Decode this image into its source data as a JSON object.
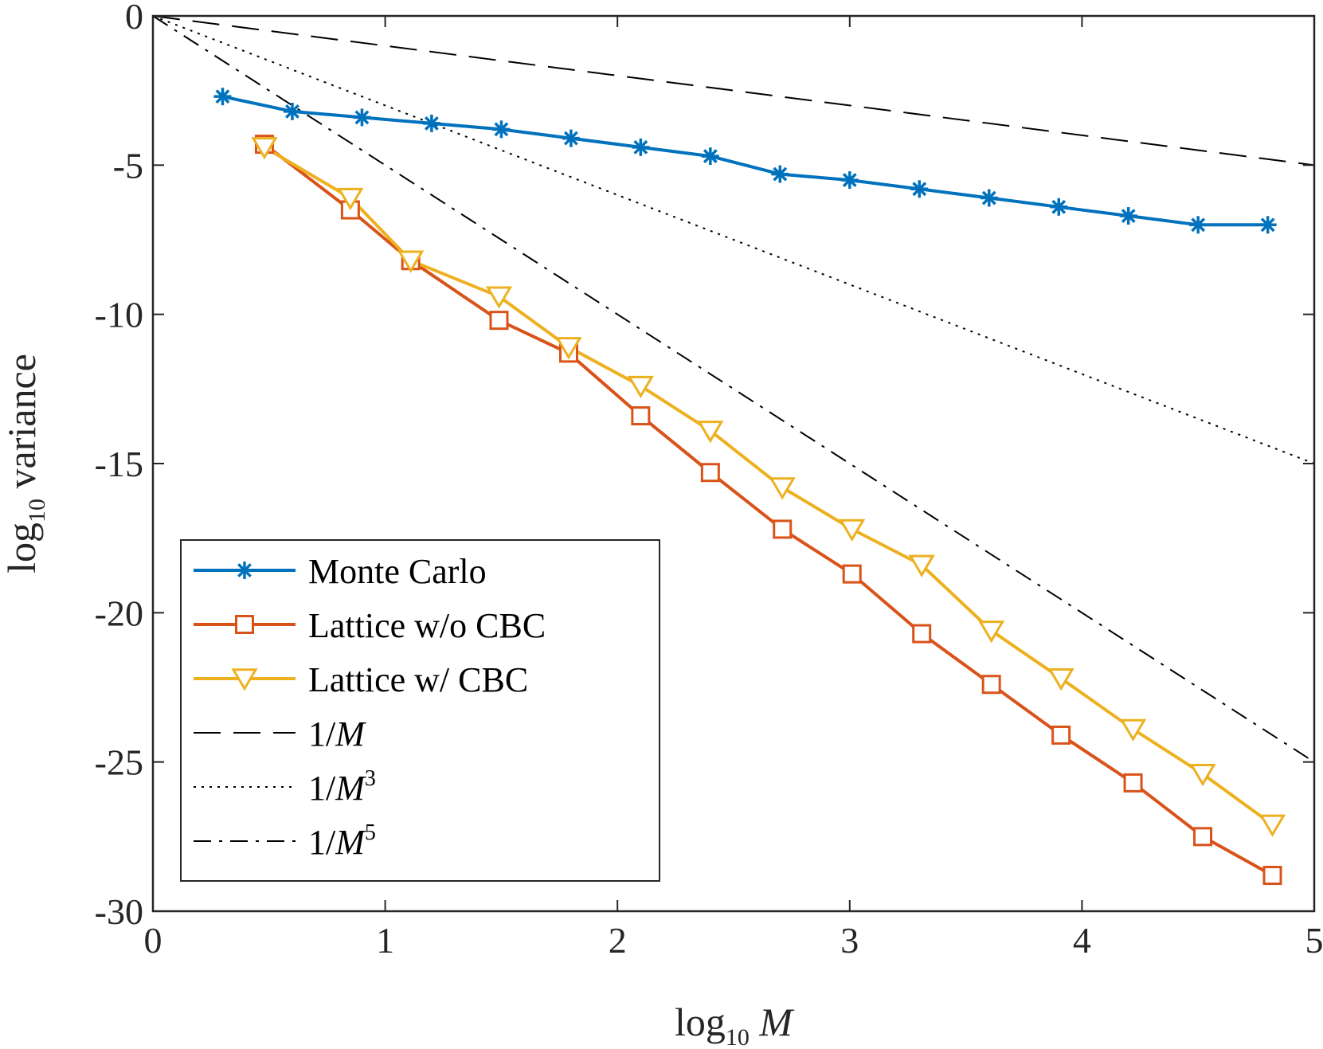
{
  "chart_data": {
    "type": "line",
    "xlabel": {
      "prefix": "log",
      "sub": "10",
      "var": "M"
    },
    "ylabel": {
      "prefix": "log",
      "sub": "10",
      "rest": "variance"
    },
    "xlim": [
      0,
      5
    ],
    "ylim": [
      -30,
      0
    ],
    "xticks": [
      0,
      1,
      2,
      3,
      4,
      5
    ],
    "yticks": [
      0,
      -5,
      -10,
      -15,
      -20,
      -25,
      -30
    ],
    "xtick_labels": [
      "0",
      "1",
      "2",
      "3",
      "4",
      "5"
    ],
    "ytick_labels": [
      "0",
      "-5",
      "-10",
      "-15",
      "-20",
      "-25",
      "-30"
    ],
    "grid": false,
    "legend_position": "bottom-left",
    "series": [
      {
        "name": "Monte Carlo",
        "color": "#0072BD",
        "marker": "asterisk",
        "x": [
          0.3,
          0.6,
          0.9,
          1.2,
          1.5,
          1.8,
          2.1,
          2.4,
          2.7,
          3.0,
          3.3,
          3.6,
          3.9,
          4.2,
          4.5,
          4.8
        ],
        "y": [
          -2.7,
          -3.2,
          -3.4,
          -3.6,
          -3.8,
          -4.1,
          -4.4,
          -4.7,
          -5.3,
          -5.5,
          -5.8,
          -6.1,
          -6.4,
          -6.7,
          -7.0,
          -7.0
        ]
      },
      {
        "name": "Lattice w/o CBC",
        "color": "#D95319",
        "marker": "square",
        "x": [
          0.48,
          0.85,
          1.11,
          1.49,
          1.79,
          2.1,
          2.4,
          2.71,
          3.01,
          3.31,
          3.61,
          3.91,
          4.22,
          4.52,
          4.82
        ],
        "y": [
          -4.3,
          -6.5,
          -8.2,
          -10.2,
          -11.3,
          -13.4,
          -15.3,
          -17.2,
          -18.7,
          -20.7,
          -22.4,
          -24.1,
          -25.7,
          -27.5,
          -28.8
        ]
      },
      {
        "name": "Lattice w/ CBC",
        "color": "#EDB120",
        "marker": "triangle-down",
        "x": [
          0.48,
          0.85,
          1.11,
          1.49,
          1.79,
          2.1,
          2.4,
          2.71,
          3.01,
          3.31,
          3.61,
          3.91,
          4.22,
          4.52,
          4.82
        ],
        "y": [
          -4.4,
          -6.1,
          -8.2,
          -9.4,
          -11.1,
          -12.4,
          -13.9,
          -15.8,
          -17.2,
          -18.4,
          -20.6,
          -22.2,
          -23.9,
          -25.4,
          -27.1
        ]
      }
    ],
    "reference_lines": [
      {
        "name": "1/M",
        "base": "1/",
        "var": "M",
        "power": "",
        "slope": -1,
        "dash": "dashed",
        "color": "#000000"
      },
      {
        "name": "1/M^3",
        "base": "1/",
        "var": "M",
        "power": "3",
        "slope": -3,
        "dash": "dotted",
        "color": "#000000"
      },
      {
        "name": "1/M^5",
        "base": "1/",
        "var": "M",
        "power": "5",
        "slope": -5,
        "dash": "dashdot",
        "color": "#000000"
      }
    ]
  }
}
